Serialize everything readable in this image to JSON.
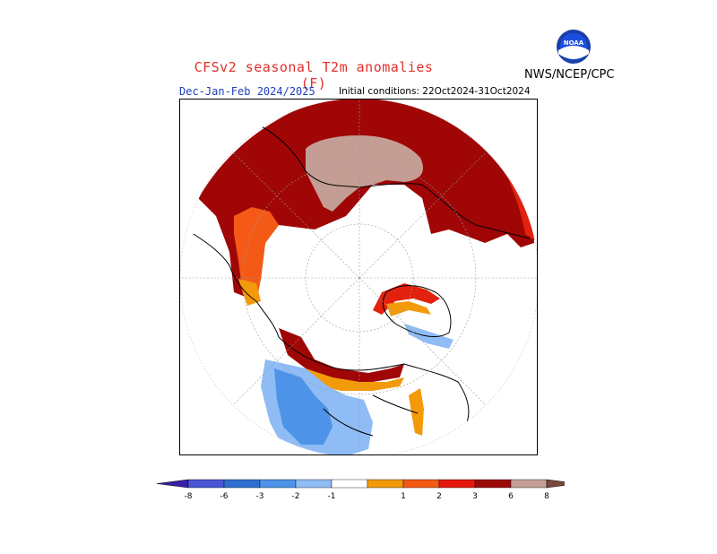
{
  "title": "CFSv2 seasonal T2m anomalies (F)",
  "agency": "NWS/NCEP/CPC",
  "logo_text": "NOAA",
  "subtitle": "Dec-Jan-Feb 2024/2025",
  "initial_conditions": "Initial conditions: 22Oct2024-31Oct2024",
  "colorbar": {
    "labels": [
      "-8",
      "-6",
      "-3",
      "-2",
      "-1",
      "1",
      "2",
      "3",
      "6",
      "8"
    ],
    "colors": [
      "#3a1fa8",
      "#4a55d6",
      "#2e6fd1",
      "#4d93e8",
      "#8fbcf5",
      "#ffffff",
      "#f39a0a",
      "#f35a14",
      "#e6180e",
      "#9c0a08",
      "#c49e94",
      "#7a4a3c"
    ]
  },
  "colors": {
    "title": "#e0302a",
    "subtitle": "#1f3fbf",
    "dark_red": "#a00606",
    "red": "#e2220e",
    "orange_red": "#f45a16",
    "orange": "#f39a0a",
    "tan": "#c49e94",
    "light_blue": "#8fbcf5",
    "blue": "#4d93e8"
  }
}
